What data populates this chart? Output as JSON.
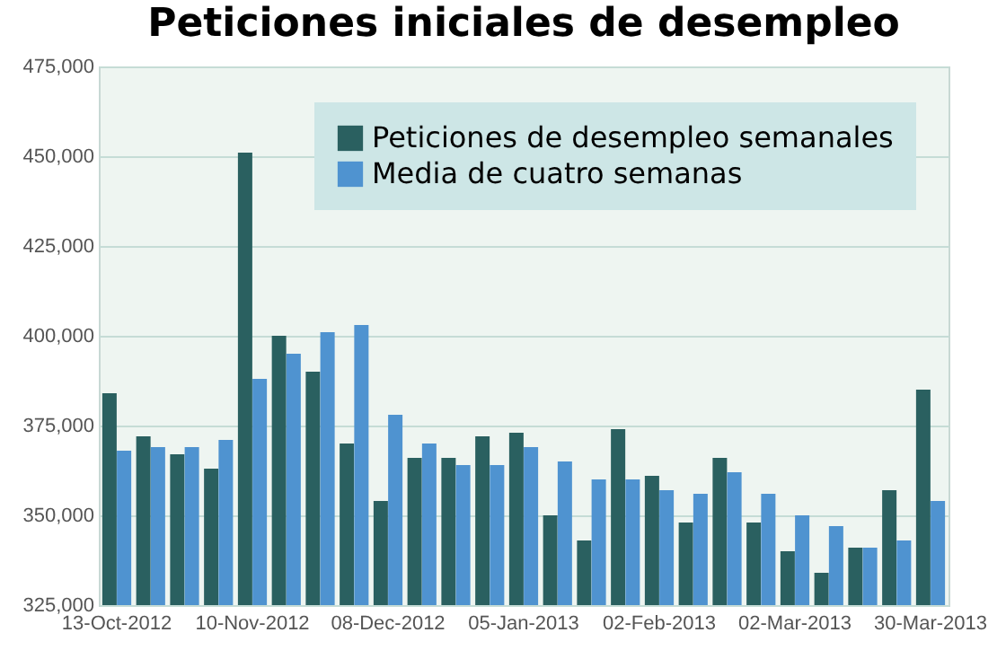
{
  "chart_data": {
    "type": "bar",
    "title": "Peticiones iniciales de desempleo",
    "categories": [
      "13-Oct-2012",
      null,
      null,
      null,
      "10-Nov-2012",
      null,
      null,
      null,
      "08-Dec-2012",
      null,
      null,
      null,
      "05-Jan-2013",
      null,
      null,
      null,
      "02-Feb-2013",
      null,
      null,
      null,
      "02-Mar-2013",
      null,
      null,
      null,
      "30-Mar-2013"
    ],
    "series": [
      {
        "name": "Peticiones de desempleo semanales",
        "color": "#2a6060",
        "values": [
          384000,
          372000,
          367000,
          363000,
          451000,
          400000,
          390000,
          370000,
          354000,
          366000,
          366000,
          372000,
          373000,
          350000,
          343000,
          374000,
          361000,
          348000,
          366000,
          348000,
          340000,
          334000,
          341000,
          357000,
          385000
        ]
      },
      {
        "name": "Media de cuatro semanas",
        "color": "#4f93d0",
        "values": [
          368000,
          369000,
          369000,
          371000,
          388000,
          395000,
          401000,
          403000,
          378000,
          370000,
          364000,
          364000,
          369000,
          365000,
          360000,
          360000,
          357000,
          356000,
          362000,
          356000,
          350000,
          347000,
          341000,
          343000,
          354000
        ]
      }
    ],
    "ylim": [
      325000,
      475000
    ],
    "yticks": [
      {
        "value": 325000,
        "label": "325,000"
      },
      {
        "value": 350000,
        "label": "350,000"
      },
      {
        "value": 375000,
        "label": "375,000"
      },
      {
        "value": 400000,
        "label": "400,000"
      },
      {
        "value": 425000,
        "label": "425,000"
      },
      {
        "value": 450000,
        "label": "450,000"
      },
      {
        "value": 475000,
        "label": "475,000"
      }
    ],
    "grid": "y",
    "legend": "top right"
  }
}
